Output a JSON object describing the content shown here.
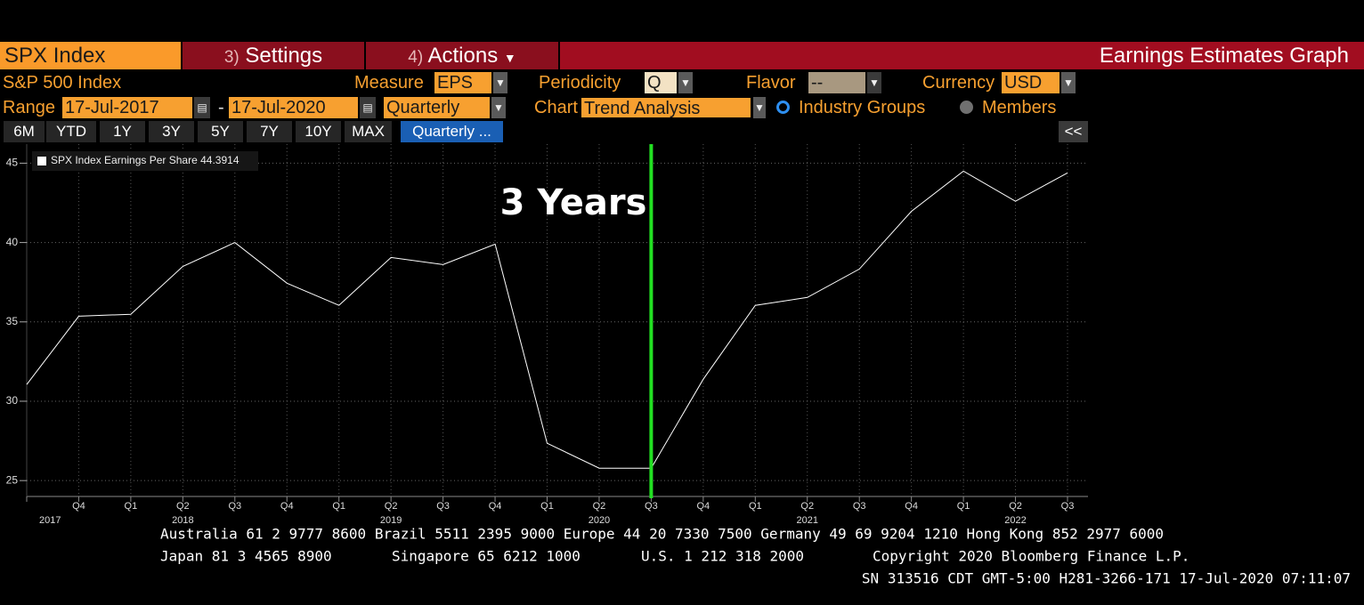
{
  "header": {
    "security": "SPX Index",
    "menu": [
      {
        "number": "3)",
        "label": "Settings"
      },
      {
        "number": "4)",
        "label": "Actions"
      }
    ],
    "title": "Earnings Estimates Graph"
  },
  "controls": {
    "name": "S&P 500 Index",
    "measure_label": "Measure",
    "measure": "EPS",
    "periodicity_label": "Periodicity",
    "periodicity": "Q",
    "flavor_label": "Flavor",
    "flavor": "--",
    "currency_label": "Currency",
    "currency": "USD",
    "range_label": "Range",
    "start": "17-Jul-2017",
    "range_separator": "-",
    "end": "17-Jul-2020",
    "frequency": "Quarterly",
    "chart_label": "Chart",
    "chart": "Trend Analysis",
    "options": [
      {
        "label": "Industry Groups",
        "selected": true
      },
      {
        "label": "Members",
        "selected": false
      }
    ]
  },
  "periods": [
    "6M",
    "YTD",
    "1Y",
    "3Y",
    "5Y",
    "7Y",
    "10Y",
    "MAX"
  ],
  "active_period": "Quarterly ...",
  "collapse": "<<",
  "chart_data": {
    "type": "line",
    "categories": [
      null,
      "Q4",
      "Q1",
      "Q2",
      "Q3",
      "Q4",
      "Q1",
      "Q2",
      "Q3",
      "Q4",
      "Q1",
      "Q2",
      "Q3",
      "Q4",
      "Q1",
      "Q2",
      "Q3",
      "Q4",
      "Q1",
      "Q2",
      "Q3"
    ],
    "year_labels": [
      "2017",
      null,
      null,
      "2018",
      null,
      null,
      null,
      "2019",
      null,
      null,
      null,
      "2020",
      null,
      null,
      null,
      "2021",
      null,
      null,
      null,
      "2022",
      null
    ],
    "series": [
      {
        "name": "SPX Index Earnings Per Share",
        "color": "#ffffff",
        "values": [
          31.05,
          35.36,
          35.48,
          38.5,
          40.0,
          37.44,
          36.04,
          39.06,
          38.61,
          39.9,
          27.35,
          25.78,
          25.78,
          31.39,
          36.04,
          36.54,
          38.33,
          41.97,
          44.5,
          42.6,
          44.3914
        ]
      }
    ],
    "ylim": [
      24,
      46.2
    ],
    "yticks": [
      25,
      30,
      35,
      40,
      45
    ],
    "grid": true,
    "marker": {
      "label": "3 Years",
      "index": 12,
      "color": "#22e022"
    }
  },
  "footer": {
    "phones": "Australia 61 2 9777 8600 Brazil 5511 2395 9000 Europe 44 20 7330 7500 Germany 49 69 9204 1210 Hong Kong 852 2977 6000",
    "line2": [
      "Japan 81 3 4565 8900",
      "Singapore 65 6212 1000",
      "U.S. 1 212 318 2000",
      "Copyright 2020 Bloomberg Finance L.P."
    ],
    "session": "SN 313516 CDT  GMT-5:00 H281-3266-171 17-Jul-2020 07:11:07"
  }
}
